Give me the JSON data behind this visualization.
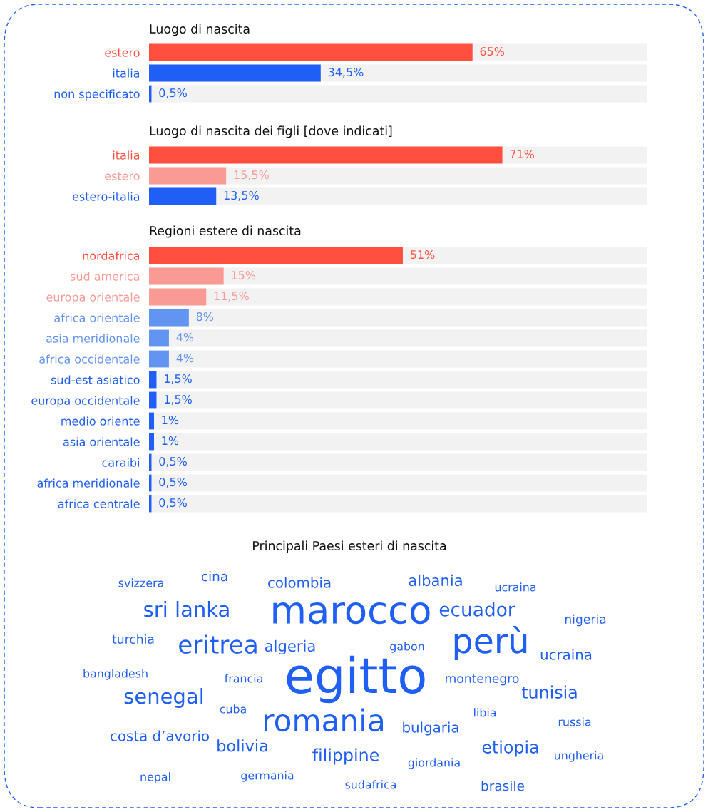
{
  "chart_data": [
    {
      "type": "bar",
      "orientation": "horizontal",
      "title": "Luogo di nascita",
      "categories": [
        "estero",
        "italia",
        "non specificato"
      ],
      "values": [
        65,
        34.5,
        0.5
      ],
      "colors": [
        "#ff4f3f",
        "#1f5ff5",
        "#1f5ff5"
      ],
      "value_labels": [
        "65%",
        "34,5%",
        "0,5%"
      ],
      "xlim": [
        0,
        100
      ],
      "tick_labels": "y",
      "grid": false,
      "legend": false
    },
    {
      "type": "bar",
      "orientation": "horizontal",
      "title": "Luogo di nascita dei figli [dove indicati]",
      "categories": [
        "italia",
        "estero",
        "estero-italia"
      ],
      "values": [
        71,
        15.5,
        13.5
      ],
      "colors": [
        "#ff4f3f",
        "#f99a94",
        "#1f5ff5"
      ],
      "value_labels": [
        "71%",
        "15,5%",
        "13,5%"
      ],
      "xlim": [
        0,
        100
      ],
      "tick_labels": "y",
      "grid": false,
      "legend": false
    },
    {
      "type": "bar",
      "orientation": "horizontal",
      "title": "Regioni estere di nascita",
      "categories": [
        "nordafrica",
        "sud america",
        "europa orientale",
        "africa orientale",
        "asia meridionale",
        "africa occidentale",
        "sud-est asiatico",
        "europa occidentale",
        "medio oriente",
        "asia orientale",
        "caraibi",
        "africa meridionale",
        "africa centrale"
      ],
      "values": [
        51,
        15,
        11.5,
        8,
        4,
        4,
        1.5,
        1.5,
        1,
        1,
        0.5,
        0.5,
        0.5
      ],
      "colors": [
        "#ff4f3f",
        "#f99a94",
        "#f99a94",
        "#6294f2",
        "#6294f2",
        "#6294f2",
        "#1f5ff5",
        "#1f5ff5",
        "#1f5ff5",
        "#1f5ff5",
        "#1f5ff5",
        "#1f5ff5",
        "#1f5ff5"
      ],
      "value_labels": [
        "51%",
        "15%",
        "11,5%",
        "8%",
        "4%",
        "4%",
        "1,5%",
        "1,5%",
        "1%",
        "1%",
        "0,5%",
        "0,5%",
        "0,5%"
      ],
      "xlim": [
        0,
        100
      ],
      "tick_labels": "y",
      "grid": false,
      "legend": false
    },
    {
      "type": "other",
      "title": "Principali Paesi esteri di nascita",
      "color": "#1f5ff5",
      "annotations": [
        "svizzera",
        "cina",
        "colombia",
        "albania",
        "ucraina",
        "sri lanka",
        "marocco",
        "ecuador",
        "nigeria",
        "turchia",
        "eritrea",
        "algeria",
        "gabon",
        "perù",
        "ucraina",
        "bangladesh",
        "francia",
        "egitto",
        "montenegro",
        "tunisia",
        "senegal",
        "cuba",
        "romania",
        "libia",
        "russia",
        "costa d’avorio",
        "bulgaria",
        "bolivia",
        "etiopia",
        "ungheria",
        "filippine",
        "giordania",
        "nepal",
        "germania",
        "sudafrica",
        "brasile"
      ]
    }
  ]
}
